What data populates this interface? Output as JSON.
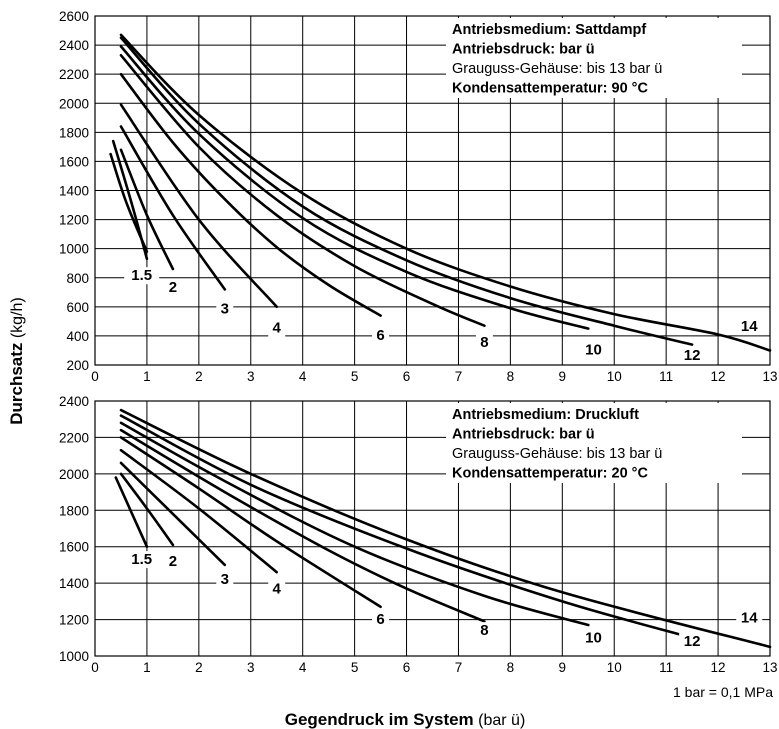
{
  "axis_labels": {
    "y_bold": "Durchsatz",
    "y_unit": "(kg/h)",
    "x_bold": "Gegendruck im System",
    "x_unit": "(bar ü)"
  },
  "footnote": "1 bar = 0,1 MPa",
  "chart_data": [
    {
      "type": "line",
      "info": [
        {
          "text": "Antriebsmedium: Sattdampf",
          "bold": true
        },
        {
          "text": "Antriebsdruck: bar ü",
          "bold": true
        },
        {
          "text": "Grauguss-Gehäuse: bis 13 bar ü",
          "bold": false
        },
        {
          "text": "Kondensattemperatur: 90 °C",
          "bold": true
        }
      ],
      "xlim": [
        0,
        13
      ],
      "ylim": [
        200,
        2600
      ],
      "x_ticks": [
        "0",
        "1",
        "2",
        "3",
        "4",
        "5",
        "6",
        "7",
        "8",
        "9",
        "10",
        "11",
        "12",
        "13"
      ],
      "y_ticks": [
        "200",
        "400",
        "600",
        "800",
        "1000",
        "1200",
        "1400",
        "1600",
        "1800",
        "2000",
        "2200",
        "2400",
        "2600"
      ],
      "grid": true,
      "series": [
        {
          "name": "1.5",
          "x": [
            0.3,
            0.6,
            1.0
          ],
          "y": [
            1650,
            1320,
            980
          ]
        },
        {
          "name": "1.5",
          "x": [
            0.35,
            0.7,
            1.0
          ],
          "y": [
            1740,
            1320,
            930
          ]
        },
        {
          "name": "2",
          "x": [
            0.5,
            1.0,
            1.5
          ],
          "y": [
            1680,
            1230,
            860
          ]
        },
        {
          "name": "3",
          "x": [
            0.5,
            1.5,
            2.5
          ],
          "y": [
            1840,
            1230,
            720
          ]
        },
        {
          "name": "4",
          "x": [
            0.5,
            2.0,
            3.5
          ],
          "y": [
            1990,
            1200,
            600
          ]
        },
        {
          "name": "6",
          "x": [
            0.5,
            1.5,
            2.5,
            3.5,
            4.5,
            5.5
          ],
          "y": [
            2200,
            1730,
            1340,
            1010,
            750,
            540
          ]
        },
        {
          "name": "8",
          "x": [
            0.5,
            2.0,
            3.5,
            5.0,
            6.5,
            7.5
          ],
          "y": [
            2330,
            1700,
            1230,
            880,
            620,
            470
          ]
        },
        {
          "name": "10",
          "x": [
            0.5,
            2.0,
            4.0,
            6.0,
            8.0,
            9.5
          ],
          "y": [
            2390,
            1790,
            1210,
            840,
            590,
            450
          ]
        },
        {
          "name": "12",
          "x": [
            0.5,
            2.0,
            4.0,
            6.0,
            8.0,
            10.0,
            11.5
          ],
          "y": [
            2450,
            1860,
            1290,
            920,
            660,
            470,
            340
          ]
        },
        {
          "name": "14",
          "x": [
            0.5,
            2.0,
            4.0,
            6.0,
            8.0,
            10.0,
            12.0,
            13.0
          ],
          "y": [
            2470,
            1920,
            1380,
            1000,
            740,
            550,
            410,
            300
          ]
        }
      ],
      "curve_labels": [
        {
          "text": "1.5",
          "x": 0.9,
          "y": 790
        },
        {
          "text": "2",
          "x": 1.5,
          "y": 710
        },
        {
          "text": "3",
          "x": 2.5,
          "y": 560
        },
        {
          "text": "4",
          "x": 3.5,
          "y": 430
        },
        {
          "text": "6",
          "x": 5.5,
          "y": 380
        },
        {
          "text": "8",
          "x": 7.5,
          "y": 330
        },
        {
          "text": "10",
          "x": 9.6,
          "y": 280
        },
        {
          "text": "12",
          "x": 11.5,
          "y": 240
        },
        {
          "text": "14",
          "x": 12.6,
          "y": 440
        }
      ]
    },
    {
      "type": "line",
      "info": [
        {
          "text": "Antriebsmedium: Druckluft",
          "bold": true
        },
        {
          "text": "Antriebsdruck: bar ü",
          "bold": true
        },
        {
          "text": "Grauguss-Gehäuse: bis 13 bar ü",
          "bold": false
        },
        {
          "text": "Kondensattemperatur: 20 °C",
          "bold": true
        }
      ],
      "xlim": [
        0,
        13
      ],
      "ylim": [
        1000,
        2400
      ],
      "x_ticks": [
        "0",
        "1",
        "2",
        "3",
        "4",
        "5",
        "6",
        "7",
        "8",
        "9",
        "10",
        "11",
        "12",
        "13"
      ],
      "y_ticks": [
        "1000",
        "1200",
        "1400",
        "1600",
        "1800",
        "2000",
        "2200",
        "2400"
      ],
      "grid": true,
      "series": [
        {
          "name": "1.5",
          "x": [
            0.4,
            0.7,
            1.0
          ],
          "y": [
            1980,
            1790,
            1600
          ]
        },
        {
          "name": "2",
          "x": [
            0.5,
            1.0,
            1.5
          ],
          "y": [
            2000,
            1810,
            1610
          ]
        },
        {
          "name": "3",
          "x": [
            0.5,
            1.5,
            2.5
          ],
          "y": [
            2060,
            1780,
            1500
          ]
        },
        {
          "name": "4",
          "x": [
            0.5,
            2.0,
            3.5
          ],
          "y": [
            2130,
            1810,
            1460
          ]
        },
        {
          "name": "6",
          "x": [
            0.5,
            2.0,
            3.5,
            5.5
          ],
          "y": [
            2200,
            1920,
            1630,
            1270
          ]
        },
        {
          "name": "8",
          "x": [
            0.5,
            2.5,
            4.5,
            6.0,
            7.5
          ],
          "y": [
            2240,
            1900,
            1580,
            1370,
            1190
          ]
        },
        {
          "name": "10",
          "x": [
            0.5,
            2.5,
            5.0,
            7.5,
            9.5
          ],
          "y": [
            2280,
            1960,
            1600,
            1330,
            1170
          ]
        },
        {
          "name": "12",
          "x": [
            0.5,
            3.0,
            6.0,
            9.0,
            11.5
          ],
          "y": [
            2320,
            1940,
            1590,
            1300,
            1100
          ]
        },
        {
          "name": "14",
          "x": [
            0.5,
            3.0,
            6.0,
            9.0,
            13.0
          ],
          "y": [
            2350,
            2000,
            1640,
            1350,
            1050
          ]
        }
      ],
      "curve_labels": [
        {
          "text": "1.5",
          "x": 0.9,
          "y": 1510
        },
        {
          "text": "2",
          "x": 1.5,
          "y": 1500
        },
        {
          "text": "3",
          "x": 2.5,
          "y": 1400
        },
        {
          "text": "4",
          "x": 3.5,
          "y": 1350
        },
        {
          "text": "6",
          "x": 5.5,
          "y": 1180
        },
        {
          "text": "8",
          "x": 7.5,
          "y": 1120
        },
        {
          "text": "10",
          "x": 9.6,
          "y": 1080
        },
        {
          "text": "12",
          "x": 11.5,
          "y": 1060
        },
        {
          "text": "14",
          "x": 12.6,
          "y": 1190
        }
      ]
    }
  ]
}
